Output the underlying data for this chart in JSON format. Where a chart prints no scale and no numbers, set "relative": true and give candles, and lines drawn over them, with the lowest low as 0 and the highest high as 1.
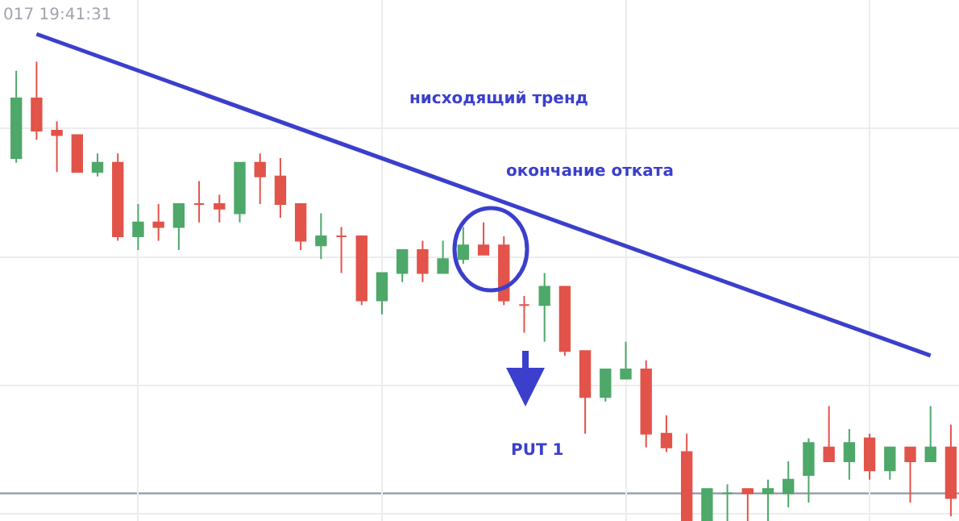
{
  "chart_data": {
    "type": "candlestick",
    "relative": true,
    "grid": true,
    "tick_labels": false,
    "categories": [
      null,
      null,
      null,
      null,
      null,
      null,
      null,
      null,
      null,
      null,
      null,
      null,
      null,
      null,
      null,
      null,
      null,
      null,
      null,
      null,
      null,
      null,
      null,
      null,
      null,
      null,
      null,
      null,
      null,
      null,
      null,
      null,
      null,
      null,
      null,
      null,
      null,
      null,
      null,
      null,
      null,
      null,
      null,
      null,
      null,
      null,
      null
    ],
    "ohlc": [
      [
        0.79,
        0.98,
        0.78,
        0.92
      ],
      [
        0.92,
        1.0,
        0.83,
        0.85
      ],
      [
        0.85,
        0.87,
        0.76,
        0.84
      ],
      [
        0.84,
        0.84,
        0.76,
        0.76
      ],
      [
        0.76,
        0.8,
        0.75,
        0.78
      ],
      [
        0.78,
        0.8,
        0.61,
        0.62
      ],
      [
        0.62,
        0.69,
        0.59,
        0.65
      ],
      [
        0.65,
        0.69,
        0.61,
        0.64
      ],
      [
        0.64,
        0.69,
        0.59,
        0.69
      ],
      [
        0.69,
        0.74,
        0.65,
        0.69
      ],
      [
        0.69,
        0.71,
        0.65,
        0.68
      ],
      [
        0.67,
        0.78,
        0.65,
        0.78
      ],
      [
        0.78,
        0.8,
        0.69,
        0.75
      ],
      [
        0.75,
        0.79,
        0.66,
        0.69
      ],
      [
        0.69,
        0.69,
        0.59,
        0.61
      ],
      [
        0.6,
        0.67,
        0.57,
        0.62
      ],
      [
        0.62,
        0.64,
        0.54,
        0.62
      ],
      [
        0.62,
        0.62,
        0.47,
        0.48
      ],
      [
        0.48,
        0.54,
        0.45,
        0.54
      ],
      [
        0.54,
        0.59,
        0.52,
        0.59
      ],
      [
        0.59,
        0.61,
        0.52,
        0.54
      ],
      [
        0.54,
        0.61,
        0.54,
        0.57
      ],
      [
        0.57,
        0.64,
        0.56,
        0.6
      ],
      [
        0.6,
        0.65,
        0.58,
        0.58
      ],
      [
        0.6,
        0.62,
        0.47,
        0.48
      ],
      [
        0.47,
        0.49,
        0.41,
        0.47
      ],
      [
        0.47,
        0.54,
        0.39,
        0.51
      ],
      [
        0.51,
        0.51,
        0.36,
        0.37
      ],
      [
        0.37,
        0.37,
        0.19,
        0.27
      ],
      [
        0.27,
        0.33,
        0.26,
        0.33
      ],
      [
        0.31,
        0.39,
        0.31,
        0.33
      ],
      [
        0.33,
        0.35,
        0.16,
        0.19
      ],
      [
        0.19,
        0.23,
        0.15,
        0.16
      ],
      [
        0.15,
        0.19,
        0,
        0
      ],
      [
        0,
        0.07,
        0,
        0.07
      ],
      [
        0.06,
        0.08,
        0,
        0.06
      ],
      [
        0.07,
        0.07,
        0,
        0.06
      ],
      [
        0.06,
        0.09,
        0,
        0.07
      ],
      [
        0.06,
        0.13,
        0.03,
        0.09
      ],
      [
        0.1,
        0.18,
        0.04,
        0.17
      ],
      [
        0.16,
        0.25,
        0.13,
        0.13
      ],
      [
        0.13,
        0.2,
        0.09,
        0.17
      ],
      [
        0.18,
        0.19,
        0.09,
        0.11
      ],
      [
        0.11,
        0.16,
        0.09,
        0.16
      ],
      [
        0.16,
        0.16,
        0.04,
        0.13
      ],
      [
        0.13,
        0.25,
        0.13,
        0.16
      ],
      [
        0.16,
        0.21,
        0.01,
        0.05
      ]
    ],
    "colors": [
      "#4ea869",
      "#e2534a",
      "#e2534a",
      "#e2534a",
      "#4ea869",
      "#e2534a",
      "#4ea869",
      "#e2534a",
      "#4ea869",
      "#e2534a",
      "#e2534a",
      "#4ea869",
      "#e2534a",
      "#e2534a",
      "#e2534a",
      "#4ea869",
      "#e2534a",
      "#e2534a",
      "#4ea869",
      "#4ea869",
      "#e2534a",
      "#4ea869",
      "#4ea869",
      "#e2534a",
      "#e2534a",
      "#e2534a",
      "#4ea869",
      "#e2534a",
      "#e2534a",
      "#4ea869",
      "#4ea869",
      "#e2534a",
      "#e2534a",
      "#e2534a",
      "#4ea869",
      "#4ea869",
      "#e2534a",
      "#4ea869",
      "#4ea869",
      "#4ea869",
      "#e2534a",
      "#4ea869",
      "#e2534a",
      "#4ea869",
      "#e2534a",
      "#4ea869",
      "#e2534a"
    ],
    "series": [
      {
        "type": "line",
        "color": "#3b3fcc",
        "values": [
          null,
          1.06,
          null,
          null,
          null,
          null,
          null,
          null,
          null,
          null,
          null,
          null,
          null,
          null,
          null,
          null,
          null,
          null,
          null,
          null,
          null,
          null,
          null,
          null,
          null,
          null,
          null,
          null,
          null,
          null,
          null,
          null,
          null,
          null,
          null,
          null,
          null,
          null,
          null,
          null,
          null,
          null,
          null,
          null,
          null,
          0.36,
          null
        ]
      }
    ],
    "ref_lines": [
      {
        "axis": "y",
        "value": 0.06,
        "color": "#9aa0ad"
      }
    ],
    "annotations": [
      "017 19:41:31",
      "нисходящий тренд",
      "окончание отката",
      "PUT 1"
    ]
  }
}
